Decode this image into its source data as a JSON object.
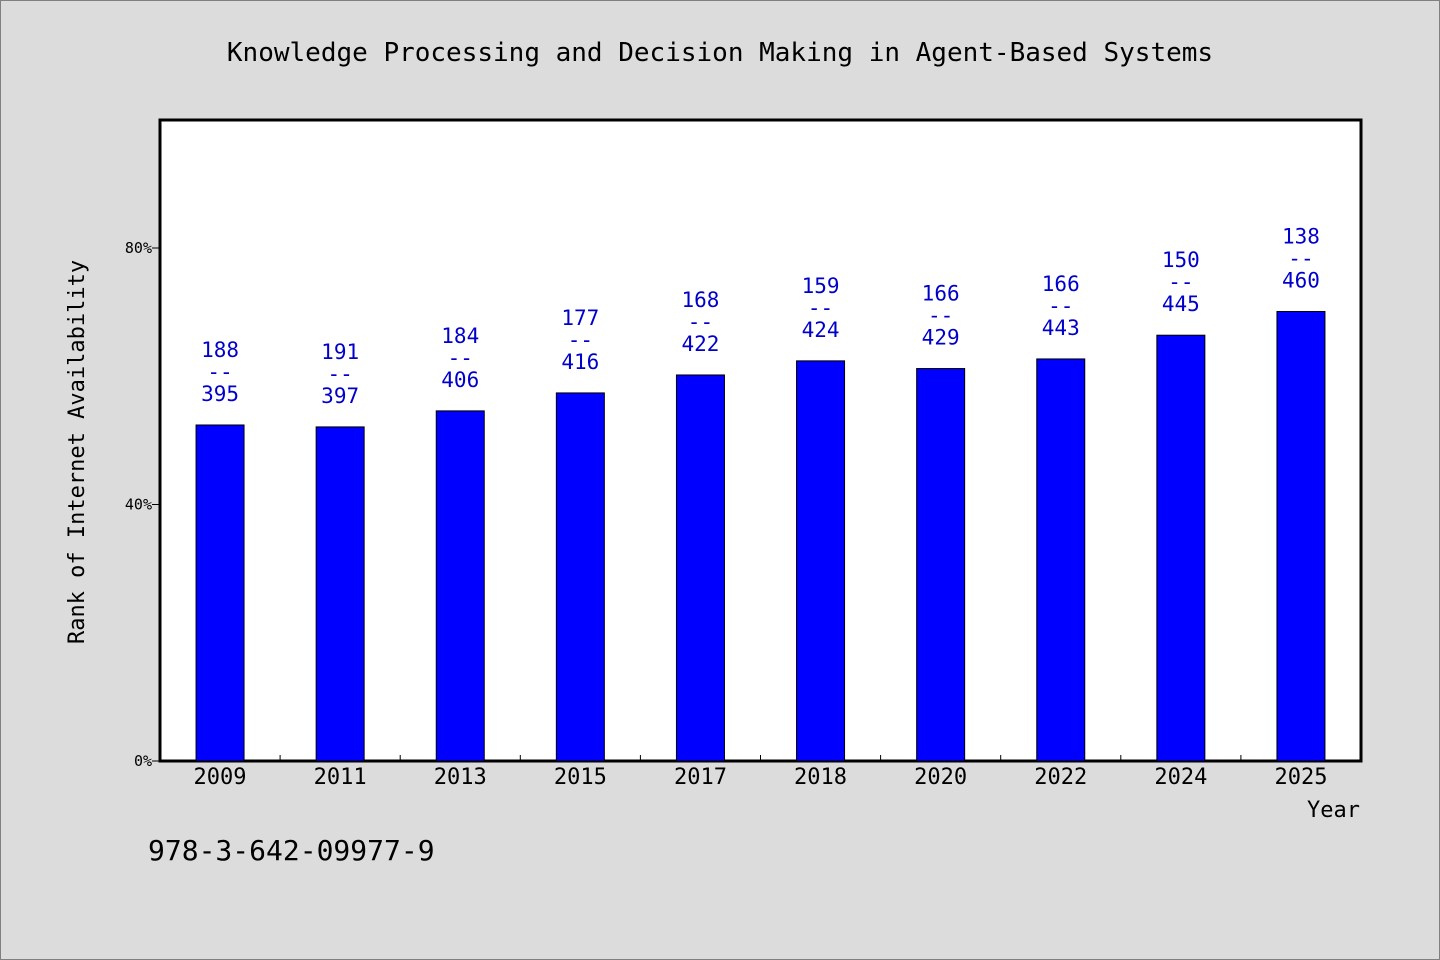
{
  "chart_data": {
    "type": "bar",
    "title": "Knowledge Processing and Decision Making in Agent-Based Systems",
    "xlabel": "Year",
    "ylabel": "Rank of Internet Availability",
    "y_unit": "%",
    "ylim": [
      0,
      100
    ],
    "yticks": [
      0,
      40,
      80
    ],
    "ytick_labels": [
      "0%",
      "40%",
      "80%"
    ],
    "categories": [
      "2009",
      "2011",
      "2013",
      "2015",
      "2017",
      "2018",
      "2020",
      "2022",
      "2024",
      "2025"
    ],
    "series": [
      {
        "values": [
          52.4,
          52.1,
          54.6,
          57.4,
          60.2,
          62.4,
          61.2,
          62.7,
          66.4,
          70.1
        ],
        "color": "#0000ff"
      }
    ],
    "data_labels": [
      {
        "rank": "188",
        "sep": "--",
        "total": "395"
      },
      {
        "rank": "191",
        "sep": "--",
        "total": "397"
      },
      {
        "rank": "184",
        "sep": "--",
        "total": "406"
      },
      {
        "rank": "177",
        "sep": "--",
        "total": "416"
      },
      {
        "rank": "168",
        "sep": "--",
        "total": "422"
      },
      {
        "rank": "159",
        "sep": "--",
        "total": "424"
      },
      {
        "rank": "166",
        "sep": "--",
        "total": "429"
      },
      {
        "rank": "166",
        "sep": "--",
        "total": "443"
      },
      {
        "rank": "150",
        "sep": "--",
        "total": "445"
      },
      {
        "rank": "138",
        "sep": "--",
        "total": "460"
      }
    ],
    "label_color": "#0000cc",
    "grid": false,
    "legend": "none"
  },
  "footer": {
    "isbn": "978-3-642-09977-9"
  }
}
